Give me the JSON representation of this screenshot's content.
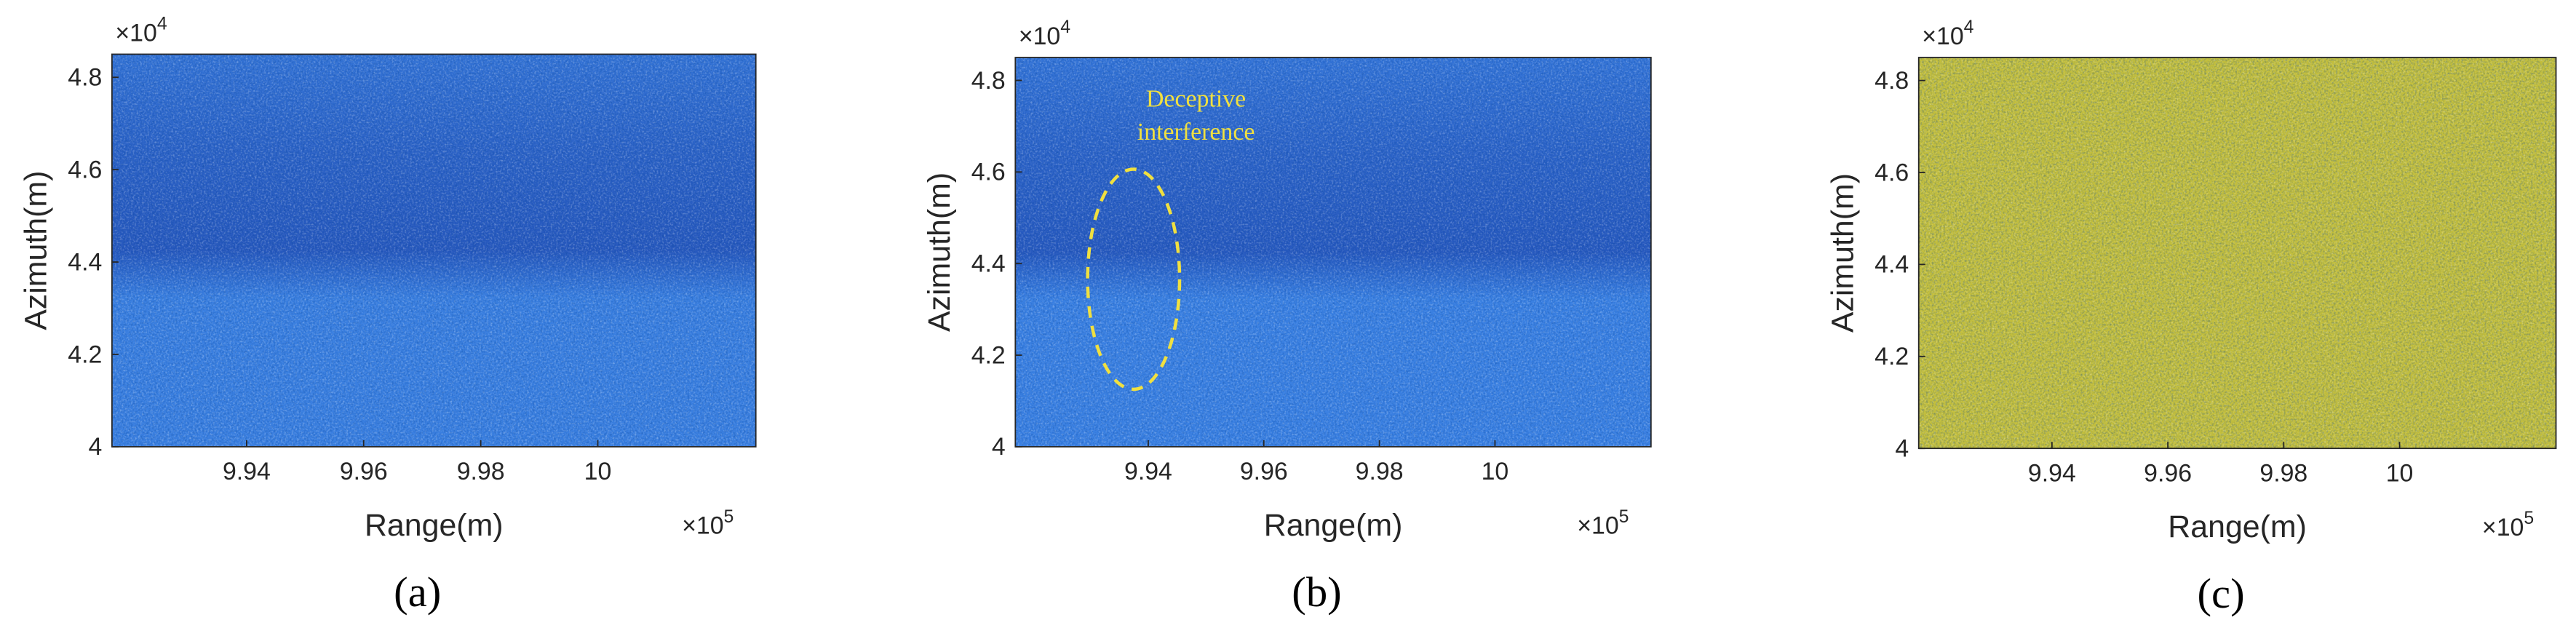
{
  "chart_data": [
    {
      "type": "image",
      "panel_label": "(a)",
      "xlabel": "Range(m)",
      "ylabel": "Azimuth(m)",
      "x_exponent": {
        "base": "×10",
        "exp": "5"
      },
      "y_exponent": {
        "base": "×10",
        "exp": "4"
      },
      "xlim": [
        9.917,
        10.027
      ],
      "ylim": [
        4,
        4.85
      ],
      "xticks": [
        9.94,
        9.96,
        9.98,
        10
      ],
      "yticks": [
        4,
        4.2,
        4.4,
        4.6,
        4.8
      ],
      "color": "#3a7fe0"
    },
    {
      "type": "image",
      "panel_label": "(b)",
      "xlabel": "Range(m)",
      "ylabel": "Azimuth(m)",
      "x_exponent": {
        "base": "×10",
        "exp": "5"
      },
      "y_exponent": {
        "base": "×10",
        "exp": "4"
      },
      "xlim": [
        9.917,
        10.027
      ],
      "ylim": [
        4,
        4.85
      ],
      "xticks": [
        9.94,
        9.96,
        9.98,
        10
      ],
      "yticks": [
        4,
        4.2,
        4.4,
        4.6,
        4.8
      ],
      "color": "#3a80e2",
      "annotation": [
        "Deceptive",
        "interference"
      ]
    },
    {
      "type": "image",
      "panel_label": "(c)",
      "xlabel": "Range(m)",
      "ylabel": "Azimuth(m)",
      "x_exponent": {
        "base": "×10",
        "exp": "5"
      },
      "y_exponent": {
        "base": "×10",
        "exp": "4"
      },
      "xlim": [
        9.917,
        10.027
      ],
      "ylim": [
        4,
        4.85
      ],
      "xticks": [
        9.94,
        9.96,
        9.98,
        10
      ],
      "yticks": [
        4,
        4.2,
        4.4,
        4.6,
        4.8
      ],
      "color": "#c2be3c"
    }
  ]
}
